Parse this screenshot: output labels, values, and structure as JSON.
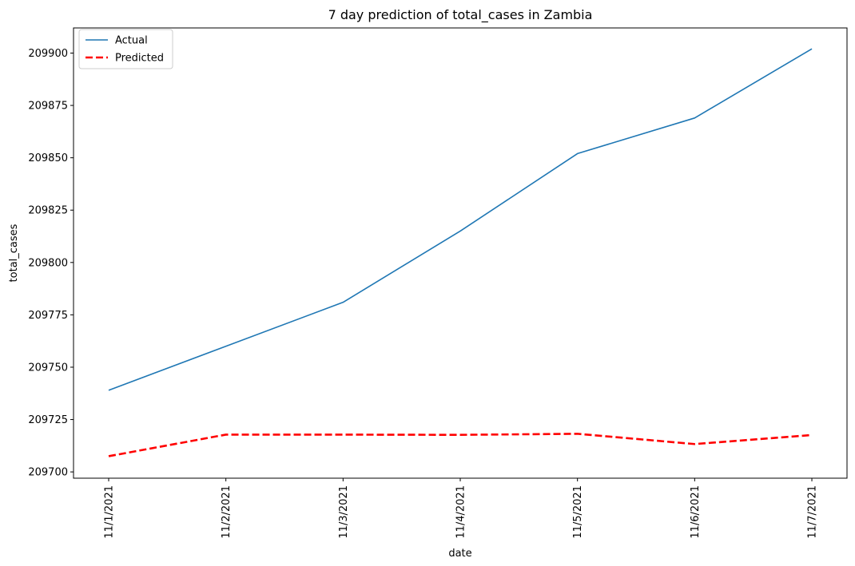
{
  "chart_data": {
    "type": "line",
    "title": "7 day prediction of total_cases in Zambia",
    "xlabel": "date",
    "ylabel": "total_cases",
    "categories": [
      "11/1/2021",
      "11/2/2021",
      "11/3/2021",
      "11/4/2021",
      "11/5/2021",
      "11/6/2021",
      "11/7/2021"
    ],
    "ylim": [
      209697,
      209912
    ],
    "yticks": [
      209700,
      209725,
      209750,
      209775,
      209800,
      209825,
      209850,
      209875,
      209900
    ],
    "grid": false,
    "legend_position": "top-left",
    "series": [
      {
        "name": "Actual",
        "color": "#1f77b4",
        "line_style": "solid",
        "values": [
          209739,
          209760,
          209781,
          209815,
          209852,
          209869,
          209902
        ]
      },
      {
        "name": "Predicted",
        "color": "#ff0000",
        "line_style": "dashed",
        "values": [
          209707.5,
          209717.8,
          209717.8,
          209717.7,
          209718.2,
          209713.3,
          209717.6
        ]
      }
    ]
  }
}
